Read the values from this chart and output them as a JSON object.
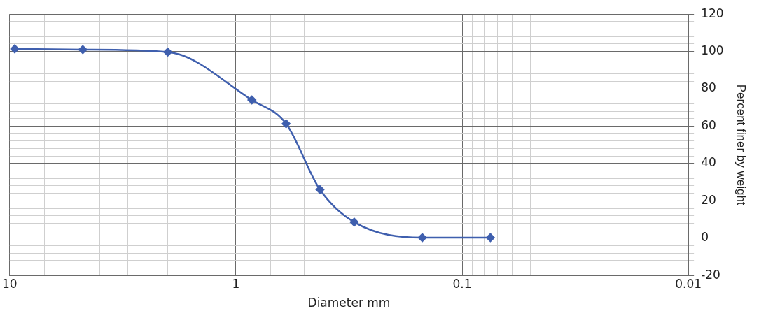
{
  "chart_data": {
    "type": "line",
    "xlabel": "Diameter mm",
    "ylabel": "Percent finer by weight",
    "x": [
      9.5,
      4.75,
      2,
      0.85,
      0.6,
      0.425,
      0.3,
      0.15,
      0.075
    ],
    "series": [
      {
        "color": "#3f5fae",
        "values": [
          101.4,
          101,
          99.7,
          74,
          61.3,
          26,
          8.6,
          0.3,
          0.3
        ]
      }
    ],
    "xlim": [
      10,
      0.01
    ],
    "ylim": [
      -20,
      120
    ],
    "log": "x",
    "grid": true,
    "legend": false,
    "marker": "diamond",
    "line_style": "solid",
    "xticks": [
      10,
      {
        "value": 9,
        "label": null
      },
      {
        "value": 8,
        "label": null
      },
      {
        "value": 7,
        "label": null
      },
      {
        "value": 6,
        "label": null
      },
      {
        "value": 5,
        "label": null
      },
      {
        "value": 4,
        "label": null
      },
      {
        "value": 3,
        "label": null
      },
      {
        "value": 2,
        "label": null
      },
      1,
      {
        "value": 0.9,
        "label": null
      },
      {
        "value": 0.8,
        "label": null
      },
      {
        "value": 0.7,
        "label": null
      },
      {
        "value": 0.6,
        "label": null
      },
      {
        "value": 0.5,
        "label": null
      },
      {
        "value": 0.4,
        "label": null
      },
      {
        "value": 0.3,
        "label": null
      },
      {
        "value": 0.2,
        "label": null
      },
      0.1,
      {
        "value": 0.09,
        "label": null
      },
      {
        "value": 0.08,
        "label": null
      },
      {
        "value": 0.07,
        "label": null
      },
      {
        "value": 0.06,
        "label": null
      },
      {
        "value": 0.05,
        "label": null
      },
      {
        "value": 0.04,
        "label": null
      },
      {
        "value": 0.03,
        "label": null
      },
      {
        "value": 0.02,
        "label": null
      },
      0.01
    ],
    "yticks": [
      -20,
      {
        "value": -16,
        "label": null
      },
      {
        "value": -12,
        "label": null
      },
      {
        "value": -8,
        "label": null
      },
      {
        "value": -4,
        "label": null
      },
      0,
      {
        "value": 4,
        "label": null
      },
      {
        "value": 8,
        "label": null
      },
      {
        "value": 12,
        "label": null
      },
      {
        "value": 16,
        "label": null
      },
      20,
      {
        "value": 24,
        "label": null
      },
      {
        "value": 28,
        "label": null
      },
      {
        "value": 32,
        "label": null
      },
      {
        "value": 36,
        "label": null
      },
      40,
      {
        "value": 44,
        "label": null
      },
      {
        "value": 48,
        "label": null
      },
      {
        "value": 52,
        "label": null
      },
      {
        "value": 56,
        "label": null
      },
      60,
      {
        "value": 64,
        "label": null
      },
      {
        "value": 68,
        "label": null
      },
      {
        "value": 72,
        "label": null
      },
      {
        "value": 76,
        "label": null
      },
      80,
      {
        "value": 84,
        "label": null
      },
      {
        "value": 88,
        "label": null
      },
      {
        "value": 92,
        "label": null
      },
      {
        "value": 96,
        "label": null
      },
      100,
      {
        "value": 104,
        "label": null
      },
      {
        "value": 108,
        "label": null
      },
      {
        "value": 112,
        "label": null
      },
      {
        "value": 116,
        "label": null
      },
      120
    ]
  }
}
